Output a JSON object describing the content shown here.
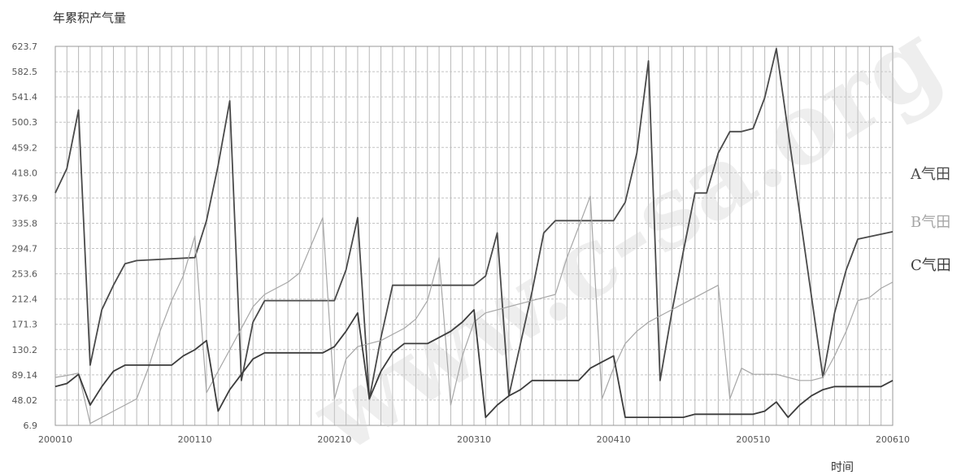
{
  "chart_data": {
    "type": "line",
    "title": "年累积产气量",
    "xlabel": "时间",
    "ylabel": "",
    "yticks": [
      "623.7",
      "582.5",
      "541.4",
      "500.3",
      "459.2",
      "418.0",
      "376.9",
      "335.8",
      "294.7",
      "253.6",
      "212.4",
      "171.3",
      "130.2",
      "89.14",
      "48.02",
      "6.9"
    ],
    "ylim": [
      6.9,
      623.7
    ],
    "xticks": [
      "200010",
      "200110",
      "200210",
      "200310",
      "200410",
      "200510",
      "200610"
    ],
    "xlim": [
      0,
      72
    ],
    "grid": true,
    "legend_position": "right",
    "watermark": "www.c-sa.org",
    "series": [
      {
        "name": "A气田",
        "color": "#4a4a4a",
        "x": [
          0,
          1,
          2,
          3,
          4,
          5,
          6,
          7,
          12,
          13,
          14,
          15,
          16,
          17,
          18,
          19,
          24,
          25,
          26,
          27,
          28,
          29,
          30,
          31,
          36,
          37,
          38,
          39,
          40,
          41,
          42,
          43,
          44,
          48,
          49,
          50,
          51,
          52,
          53,
          54,
          55,
          56,
          57,
          58,
          59,
          60,
          61,
          62,
          66,
          67,
          68,
          69,
          72
        ],
        "y": [
          385,
          425,
          520,
          105,
          195,
          235,
          270,
          275,
          280,
          340,
          430,
          535,
          80,
          175,
          210,
          210,
          210,
          260,
          345,
          50,
          150,
          235,
          235,
          235,
          235,
          250,
          320,
          55,
          140,
          225,
          320,
          340,
          340,
          340,
          370,
          450,
          600,
          80,
          190,
          290,
          385,
          385,
          450,
          485,
          485,
          490,
          540,
          620,
          85,
          190,
          260,
          310,
          322
        ]
      },
      {
        "name": "B气田",
        "color": "#a6a6a6",
        "x": [
          0,
          1,
          2,
          3,
          4,
          5,
          6,
          7,
          8,
          9,
          10,
          11,
          12,
          13,
          14,
          15,
          16,
          17,
          18,
          19,
          20,
          21,
          22,
          23,
          24,
          25,
          26,
          27,
          28,
          29,
          30,
          31,
          32,
          33,
          34,
          35,
          36,
          37,
          38,
          39,
          40,
          41,
          42,
          43,
          44,
          45,
          46,
          47,
          48,
          49,
          50,
          51,
          52,
          53,
          54,
          55,
          56,
          57,
          58,
          59,
          60,
          61,
          62,
          63,
          64,
          65,
          66,
          67,
          68,
          69,
          70,
          71,
          72
        ],
        "y": [
          85,
          88,
          92,
          10,
          20,
          30,
          40,
          50,
          100,
          160,
          210,
          250,
          315,
          60,
          95,
          130,
          165,
          200,
          220,
          230,
          240,
          255,
          300,
          345,
          50,
          115,
          135,
          140,
          145,
          155,
          165,
          180,
          210,
          280,
          40,
          120,
          175,
          190,
          195,
          200,
          205,
          210,
          215,
          220,
          280,
          330,
          380,
          50,
          100,
          140,
          160,
          175,
          185,
          195,
          205,
          215,
          225,
          235,
          50,
          100,
          90,
          90,
          90,
          85,
          80,
          80,
          85,
          120,
          160,
          210,
          215,
          230,
          240
        ]
      },
      {
        "name": "C气田",
        "color": "#3c3c3c",
        "x": [
          0,
          1,
          2,
          3,
          4,
          5,
          6,
          7,
          8,
          9,
          10,
          11,
          12,
          13,
          14,
          15,
          16,
          17,
          18,
          19,
          20,
          21,
          22,
          23,
          24,
          25,
          26,
          27,
          28,
          29,
          30,
          31,
          32,
          33,
          34,
          35,
          36,
          37,
          38,
          39,
          40,
          41,
          42,
          43,
          44,
          45,
          46,
          47,
          48,
          49,
          50,
          51,
          52,
          53,
          54,
          55,
          56,
          57,
          58,
          59,
          60,
          61,
          62,
          63,
          64,
          65,
          66,
          67,
          68,
          69,
          70,
          71,
          72
        ],
        "y": [
          70,
          75,
          90,
          40,
          70,
          95,
          105,
          105,
          105,
          105,
          105,
          120,
          130,
          145,
          30,
          65,
          90,
          115,
          125,
          125,
          125,
          125,
          125,
          125,
          135,
          160,
          190,
          50,
          95,
          125,
          140,
          140,
          140,
          150,
          160,
          175,
          195,
          20,
          40,
          55,
          65,
          80,
          80,
          80,
          80,
          80,
          100,
          110,
          120,
          20,
          20,
          20,
          20,
          20,
          20,
          25,
          25,
          25,
          25,
          25,
          25,
          30,
          45,
          20,
          40,
          55,
          65,
          70,
          70,
          70,
          70,
          70,
          80
        ]
      }
    ]
  }
}
